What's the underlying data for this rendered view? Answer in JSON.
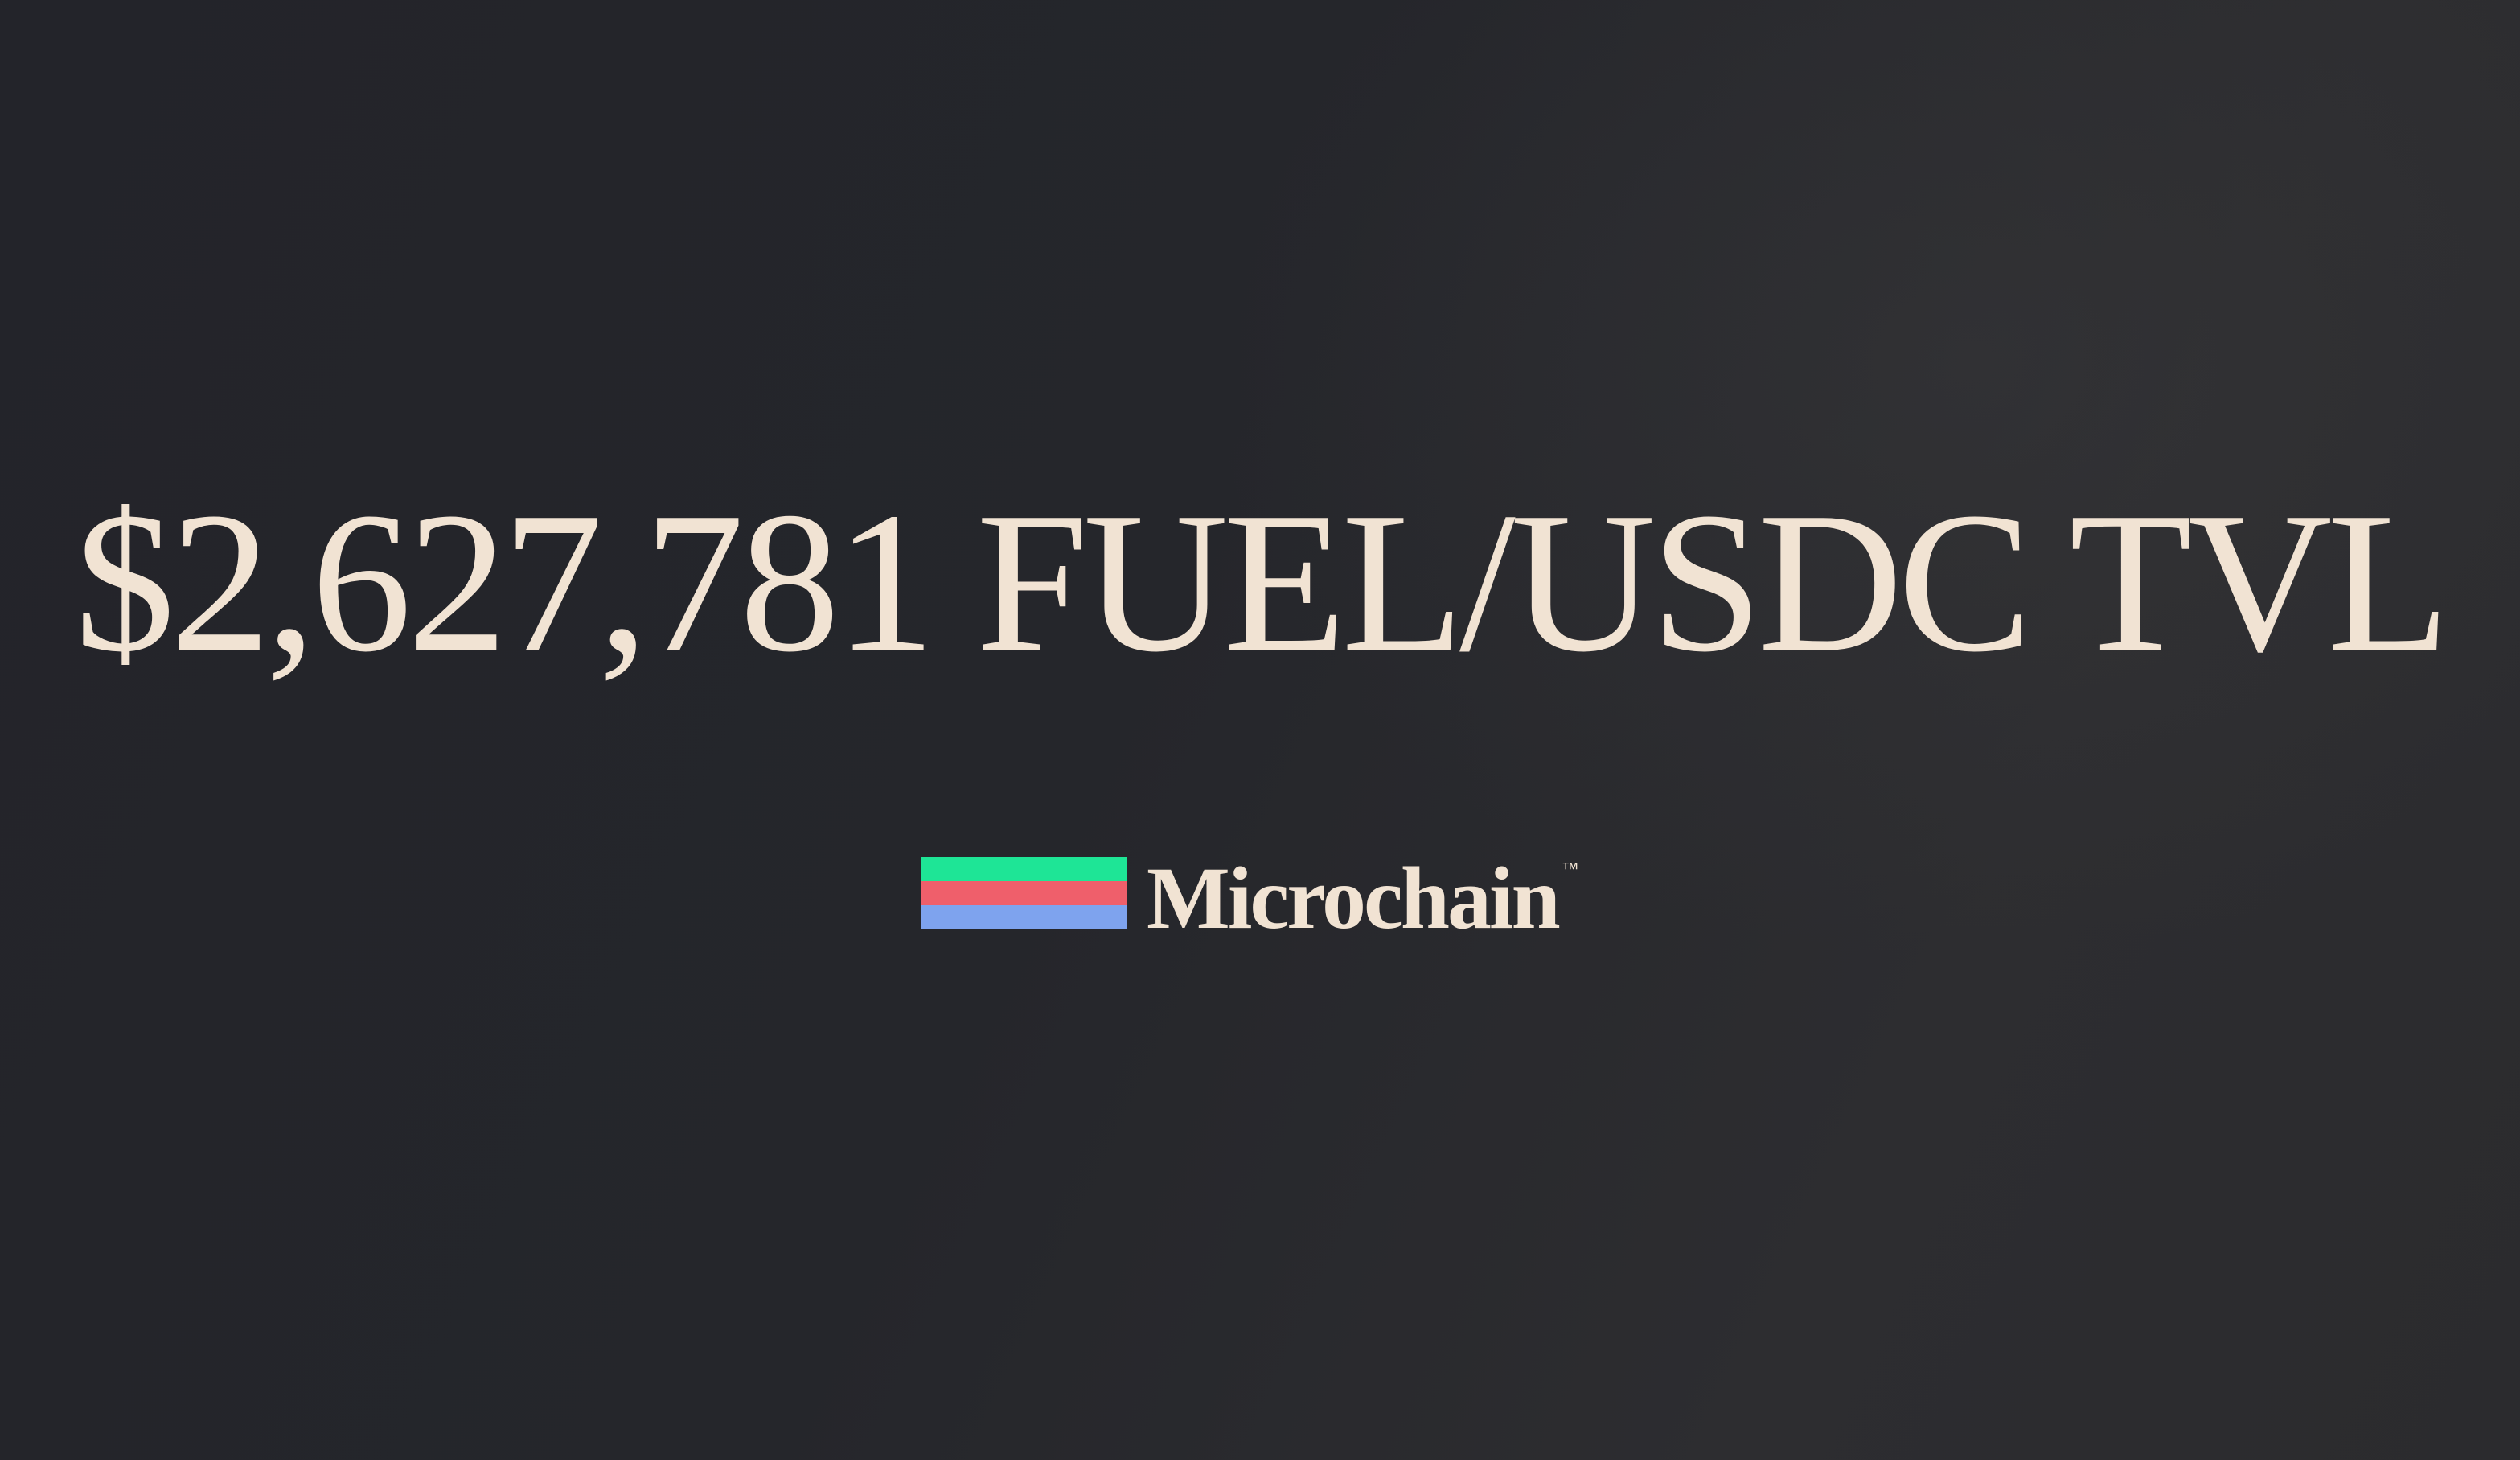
{
  "headline": "$2,627,781 FUEL/USDC TVL",
  "brand": {
    "name": "Microchain",
    "trademark": "™",
    "logo_icon": "three-stripe-logo-icon"
  },
  "colors": {
    "background": "#25262b",
    "text": "#f1e3d3",
    "stripe_top": "#1ee596",
    "stripe_middle": "#ef5f6b",
    "stripe_bottom": "#7ea3ee"
  }
}
